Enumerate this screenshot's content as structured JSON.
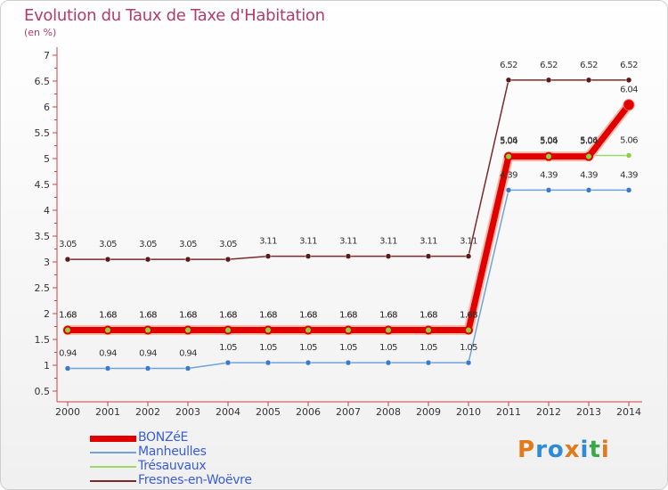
{
  "header": {
    "title": "Evolution du Taux de Taxe d'Habitation",
    "subtitle": "(en %)"
  },
  "logo": {
    "text": "Proxiti",
    "letters": [
      "P",
      "r",
      "o",
      "x",
      "i",
      "t",
      "i"
    ],
    "colors": [
      "#e07a1b",
      "#2e8bd6",
      "#2e8bd6",
      "#e07a1b",
      "#2e8bd6",
      "#3aa84a",
      "#e07a1b"
    ]
  },
  "colors": {
    "title": "#b03c6c",
    "legend_text": "#3a5cd8"
  },
  "chart_data": {
    "type": "line",
    "title": "Evolution du Taux de Taxe d'Habitation",
    "ylabel": "(en %)",
    "xlabel": "",
    "ylim": [
      0.5,
      7
    ],
    "yticks": [
      "0.5",
      "1",
      "1.5",
      "2",
      "2.5",
      "3",
      "3.5",
      "4",
      "4.5",
      "5",
      "5.5",
      "6",
      "6.5",
      "7"
    ],
    "categories": [
      "2000",
      "2001",
      "2002",
      "2003",
      "2004",
      "2005",
      "2006",
      "2007",
      "2008",
      "2009",
      "2010",
      "2011",
      "2012",
      "2013",
      "2014"
    ],
    "grid": false,
    "legend_position": "bottom-left",
    "series": [
      {
        "name": "BONZéE",
        "color": "#e00000",
        "width": 7,
        "marker": "#8bd33a",
        "values": [
          1.68,
          1.68,
          1.68,
          1.68,
          1.68,
          1.68,
          1.68,
          1.68,
          1.68,
          1.68,
          1.68,
          5.04,
          5.04,
          5.04,
          6.04
        ],
        "labels": [
          "1.68",
          "1.68",
          "1.68",
          "1.68",
          "1.68",
          "1.68",
          "1.68",
          "1.68",
          "1.68",
          "1.68",
          "1.68",
          "5.04",
          "5.04",
          "5.04",
          "6.04"
        ]
      },
      {
        "name": "Manheulles",
        "color": "#6fa3d9",
        "width": 1.5,
        "marker": "#3a7ac8",
        "values": [
          0.94,
          0.94,
          0.94,
          0.94,
          1.05,
          1.05,
          1.05,
          1.05,
          1.05,
          1.05,
          1.05,
          4.39,
          4.39,
          4.39,
          4.39
        ],
        "labels": [
          "0.94",
          "0.94",
          "0.94",
          "0.94",
          "1.05",
          "1.05",
          "1.05",
          "1.05",
          "1.05",
          "1.05",
          "1.05",
          "4.39",
          "4.39",
          "4.39",
          "4.39"
        ]
      },
      {
        "name": "Trésauvaux",
        "color": "#9ad86a",
        "width": 1.5,
        "marker": "#8bd33a",
        "values": [
          1.68,
          1.68,
          1.68,
          1.68,
          1.68,
          1.68,
          1.68,
          1.68,
          1.68,
          1.68,
          1.68,
          5.06,
          5.06,
          5.06,
          5.06
        ],
        "labels": [
          "1.68",
          "1.68",
          "1.68",
          "1.68",
          "1.68",
          "1.68",
          "1.68",
          "1.68",
          "1.68",
          "1.68",
          "1.68",
          "5.06",
          "5.06",
          "5.06",
          "5.06"
        ]
      },
      {
        "name": "Fresnes-en-Woëvre",
        "color": "#7a2a2a",
        "width": 1.5,
        "marker": "#5a1a1a",
        "values": [
          3.05,
          3.05,
          3.05,
          3.05,
          3.05,
          3.11,
          3.11,
          3.11,
          3.11,
          3.11,
          3.11,
          6.52,
          6.52,
          6.52,
          6.52
        ],
        "labels": [
          "3.05",
          "3.05",
          "3.05",
          "3.05",
          "3.05",
          "3.11",
          "3.11",
          "3.11",
          "3.11",
          "3.11",
          "3.11",
          "6.52",
          "6.52",
          "6.52",
          "6.52"
        ]
      }
    ]
  },
  "legend": {
    "items": [
      {
        "label": "BONZéE",
        "color": "#e00000",
        "thickness": 7
      },
      {
        "label": "Manheulles",
        "color": "#6fa3d9",
        "thickness": 2
      },
      {
        "label": "Trésauvaux",
        "color": "#9ad86a",
        "thickness": 2
      },
      {
        "label": "Fresnes-en-Woëvre",
        "color": "#7a2a2a",
        "thickness": 2
      }
    ]
  }
}
